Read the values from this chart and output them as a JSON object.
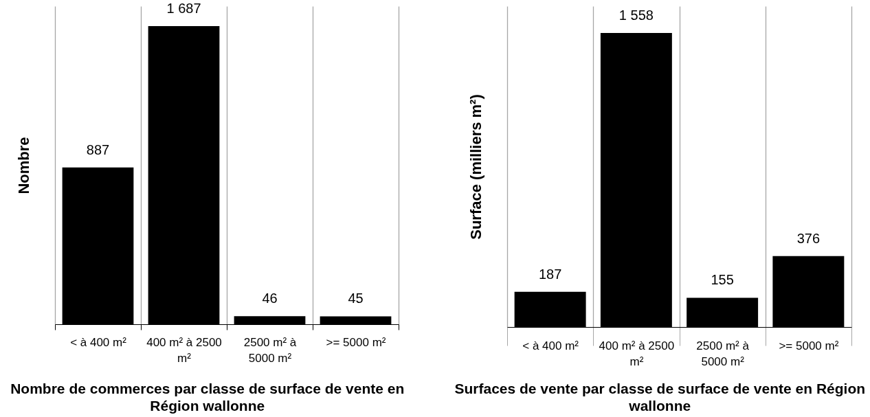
{
  "chart_data": [
    {
      "type": "bar",
      "title": "Nombre de commerces par classe de surface de vente en Région wallonne",
      "ylabel": "Nombre",
      "categories": [
        "< à 400 m²",
        "400 m² à 2500 m²",
        "2500 m² à 5000 m²",
        ">= 5000 m²"
      ],
      "values": [
        887,
        1687,
        46,
        45
      ],
      "value_labels": [
        "887",
        "1 687",
        "46",
        "45"
      ],
      "color": "#000000",
      "ylim": [
        0,
        1800
      ],
      "grid": "x",
      "tick_labels": "x"
    },
    {
      "type": "bar",
      "title": "Surfaces de vente par classe de surface de vente en Région wallonne",
      "ylabel": "Surface (milliers m²)",
      "categories": [
        "< à 400 m²",
        "400 m² à 2500 m²",
        "2500 m² à 5000 m²",
        ">= 5000 m²"
      ],
      "values": [
        187,
        1558,
        155,
        376
      ],
      "value_labels": [
        "187",
        "1 558",
        "155",
        "376"
      ],
      "color": "#000000",
      "ylim": [
        0,
        1700
      ],
      "grid": "x",
      "tick_labels": "x"
    }
  ]
}
